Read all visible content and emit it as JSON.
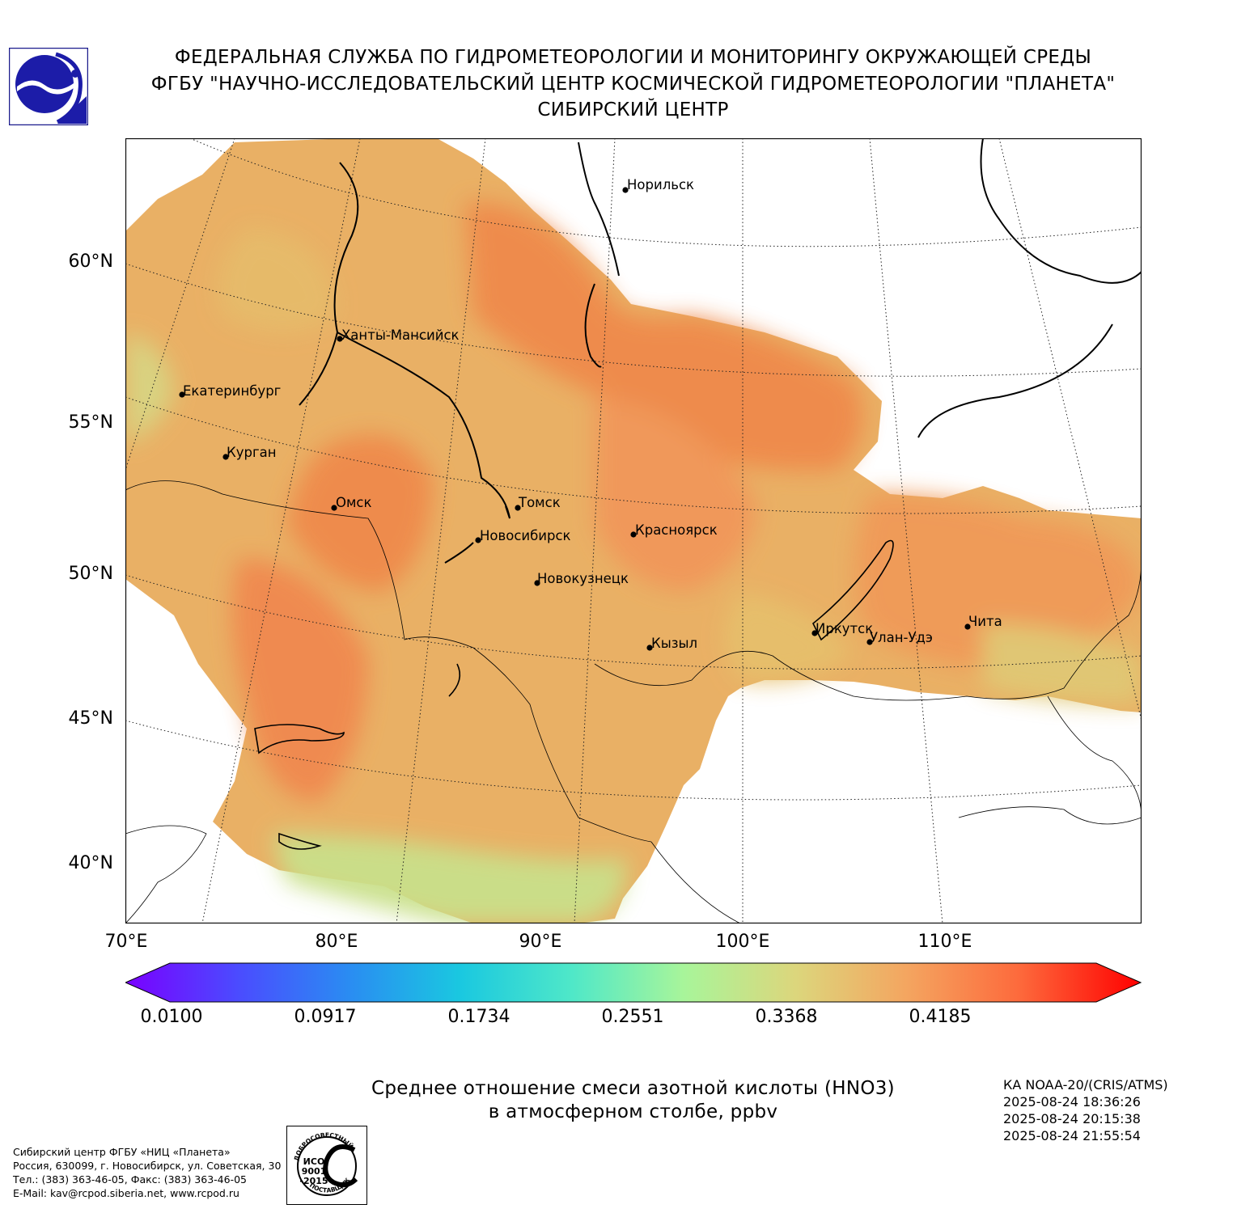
{
  "header": {
    "line1": "ФЕДЕРАЛЬНАЯ СЛУЖБА ПО ГИДРОМЕТЕОРОЛОГИИ И МОНИТОРИНГУ ОКРУЖАЮЩЕЙ СРЕДЫ",
    "line2": "ФГБУ \"НАУЧНО-ИССЛЕДОВАТЕЛЬСКИЙ ЦЕНТР КОСМИЧЕСКОЙ ГИДРОМЕТЕОРОЛОГИИ \"ПЛАНЕТА\"",
    "line3": "СИБИРСКИЙ ЦЕНТР"
  },
  "map": {
    "latitude_labels": [
      "60°N",
      "55°N",
      "50°N",
      "45°N",
      "40°N"
    ],
    "longitude_labels": [
      "70°E",
      "80°E",
      "90°E",
      "100°E",
      "110°E"
    ],
    "cities": [
      "Норильск",
      "Ханты-Мансийск",
      "Екатеринбург",
      "Курган",
      "Омск",
      "Томск",
      "Новосибирск",
      "Красноярск",
      "Новокузнецк",
      "Иркутск",
      "Улан-Удэ",
      "Чита",
      "Кызыл"
    ],
    "field_colors": {
      "low": "#c8e48a",
      "mid": "#e6c46e",
      "high": "#f19a55",
      "peak": "#ef7e47"
    }
  },
  "colorbar": {
    "ticks": [
      "0.0100",
      "0.0917",
      "0.1734",
      "0.2551",
      "0.3368",
      "0.4185"
    ],
    "palette": [
      "#7a00ff",
      "#4b4bff",
      "#2a8cf2",
      "#1ac8e0",
      "#4fe8c8",
      "#a8f59a",
      "#dcd67c",
      "#f4a560",
      "#fd6a3c",
      "#ff0000"
    ]
  },
  "product_title": {
    "line1": "Среднее отношение смеси азотной кислоты (HNO3)",
    "line2": "в атмосферном столбе, ppbv"
  },
  "satellite": {
    "name": "КА NOAA-20/(CRIS/ATMS)",
    "times": [
      "2025-08-24 18:36:26",
      "2025-08-24 20:15:38",
      "2025-08-24 21:55:54"
    ]
  },
  "footer": {
    "org": "Сибирский центр ФГБУ «НИЦ «Планета»",
    "address": "Россия, 630099, г. Новосибирск, ул. Советская, 30",
    "phone": "Тел.: (383) 363-46-05, Факс: (383) 363-46-05",
    "email": "E-Mail: kav@rcpod.siberia.net, www.rcpod.ru"
  },
  "iso_badge": {
    "top_text": "ДОБРОСОВЕСТНЫЙ",
    "bottom_text": "ПОСТАВЩИК",
    "line1": "ИСО",
    "line2": "9001",
    "line3": "-2015"
  }
}
